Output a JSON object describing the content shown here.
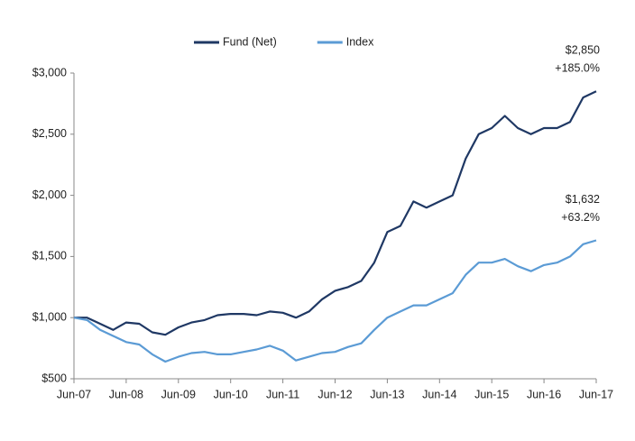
{
  "chart_data": {
    "type": "line",
    "x": [
      "Jun-07",
      "Sep-07",
      "Dec-07",
      "Mar-08",
      "Jun-08",
      "Sep-08",
      "Dec-08",
      "Mar-09",
      "Jun-09",
      "Sep-09",
      "Dec-09",
      "Mar-10",
      "Jun-10",
      "Sep-10",
      "Dec-10",
      "Mar-11",
      "Jun-11",
      "Sep-11",
      "Dec-11",
      "Mar-12",
      "Jun-12",
      "Sep-12",
      "Dec-12",
      "Mar-13",
      "Jun-13",
      "Sep-13",
      "Dec-13",
      "Mar-14",
      "Jun-14",
      "Sep-14",
      "Dec-14",
      "Mar-15",
      "Jun-15",
      "Sep-15",
      "Dec-15",
      "Mar-16",
      "Jun-16",
      "Sep-16",
      "Dec-16",
      "Mar-17",
      "Jun-17"
    ],
    "series": [
      {
        "name": "Fund (Net)",
        "color": "#1f3864",
        "values": [
          1000,
          1000,
          950,
          900,
          960,
          950,
          880,
          860,
          920,
          960,
          980,
          1020,
          1030,
          1030,
          1020,
          1050,
          1040,
          1000,
          1050,
          1150,
          1220,
          1250,
          1300,
          1450,
          1700,
          1750,
          1950,
          1900,
          1950,
          2000,
          2300,
          2500,
          2550,
          2650,
          2550,
          2500,
          2550,
          2550,
          2600,
          2800,
          2850
        ]
      },
      {
        "name": "Index",
        "color": "#5b9bd5",
        "values": [
          1000,
          980,
          900,
          850,
          800,
          780,
          700,
          640,
          680,
          710,
          720,
          700,
          700,
          720,
          740,
          770,
          730,
          650,
          680,
          710,
          720,
          760,
          790,
          900,
          1000,
          1050,
          1100,
          1100,
          1150,
          1200,
          1350,
          1450,
          1450,
          1480,
          1420,
          1380,
          1430,
          1450,
          1500,
          1600,
          1632
        ]
      }
    ],
    "xticks": [
      "Jun-07",
      "Jun-08",
      "Jun-09",
      "Jun-10",
      "Jun-11",
      "Jun-12",
      "Jun-13",
      "Jun-14",
      "Jun-15",
      "Jun-16",
      "Jun-17"
    ],
    "ylim": [
      500,
      3000
    ],
    "yticks": [
      {
        "value": 500,
        "label": "$500"
      },
      {
        "value": 1000,
        "label": "$1,000"
      },
      {
        "value": 1500,
        "label": "$1,500"
      },
      {
        "value": 2000,
        "label": "$2,000"
      },
      {
        "value": 2500,
        "label": "$2,500"
      },
      {
        "value": 3000,
        "label": "$3,000"
      }
    ],
    "annotations": [
      {
        "series": 0,
        "lines": [
          "$2,850",
          "+185.0%"
        ]
      },
      {
        "series": 1,
        "lines": [
          "$1,632",
          "+63.2%"
        ]
      }
    ],
    "legend": "top"
  }
}
